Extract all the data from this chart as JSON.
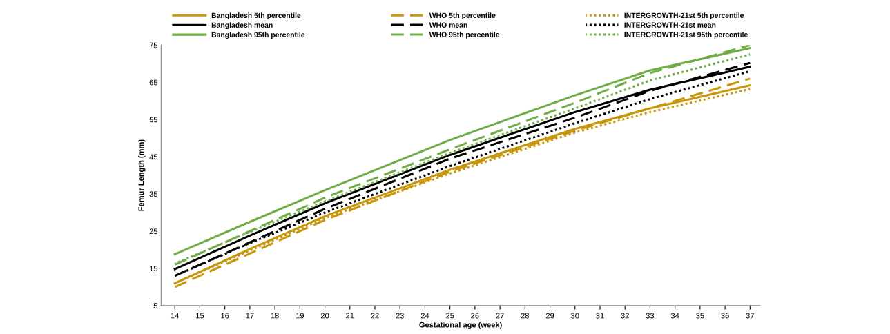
{
  "chart_data": {
    "type": "line",
    "xlabel": "Gestational age (week)",
    "ylabel": "Femur Length (mm)",
    "x": [
      14,
      17,
      20,
      25,
      30,
      33,
      37
    ],
    "xlim": [
      13.45,
      37.4
    ],
    "xticks": [
      14,
      15,
      16,
      17,
      18,
      19,
      20,
      21,
      22,
      23,
      24,
      25,
      26,
      27,
      28,
      29,
      30,
      31,
      32,
      33,
      34,
      35,
      36,
      37
    ],
    "ylim": [
      5,
      75
    ],
    "yticks": [
      5,
      15,
      25,
      35,
      45,
      55,
      65,
      75
    ],
    "grid": false,
    "legend": "top",
    "marker": "none",
    "series": [
      {
        "name": "Bangladesh 5th percentile",
        "color": "#c8960c",
        "line_style": "solid",
        "values": [
          11.0,
          20.2,
          29.0,
          41.5,
          52.5,
          58.0,
          64.2
        ]
      },
      {
        "name": "Bangladesh mean",
        "color": "#000000",
        "line_style": "solid",
        "values": [
          14.8,
          23.8,
          32.5,
          45.5,
          57.0,
          63.0,
          69.2
        ]
      },
      {
        "name": "Bangladesh 95th percentile",
        "color": "#70ad47",
        "line_style": "solid",
        "values": [
          18.8,
          27.5,
          36.0,
          49.5,
          61.5,
          68.2,
          74.2
        ]
      },
      {
        "name": "WHO 5th percentile",
        "color": "#c8960c",
        "line_style": "dashed",
        "values": [
          10.0,
          19.0,
          28.0,
          41.0,
          52.0,
          58.0,
          66.0
        ]
      },
      {
        "name": "WHO mean",
        "color": "#000000",
        "line_style": "dashed",
        "values": [
          13.0,
          22.0,
          31.0,
          44.5,
          55.5,
          62.7,
          70.2
        ]
      },
      {
        "name": "WHO 95th percentile",
        "color": "#70ad47",
        "line_style": "dashed",
        "values": [
          16.0,
          25.0,
          34.0,
          47.0,
          59.5,
          67.5,
          75.0
        ]
      },
      {
        "name": "INTERGROWTH-21st 5th percentile",
        "color": "#c8960c",
        "line_style": "dotted",
        "values": [
          11.0,
          19.8,
          28.5,
          40.5,
          51.5,
          57.0,
          63.2
        ]
      },
      {
        "name": "INTERGROWTH-21st mean",
        "color": "#000000",
        "line_style": "dotted",
        "values": [
          13.0,
          21.8,
          30.0,
          42.5,
          54.0,
          60.5,
          68.0
        ]
      },
      {
        "name": "INTERGROWTH-21st 95th percentile",
        "color": "#70ad47",
        "line_style": "dotted",
        "values": [
          16.3,
          24.8,
          33.0,
          46.0,
          58.0,
          65.5,
          72.5
        ]
      }
    ]
  }
}
